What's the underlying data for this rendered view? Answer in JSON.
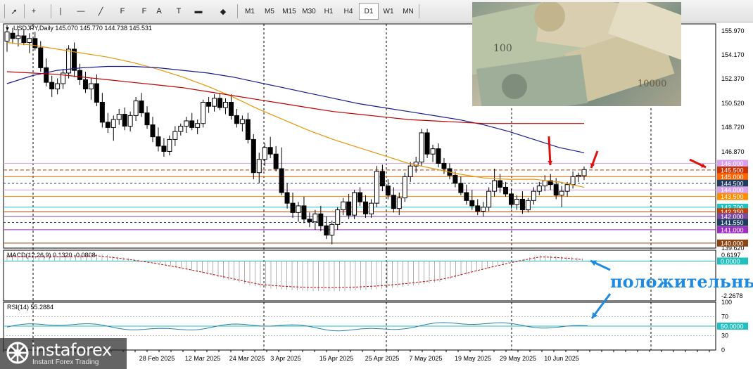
{
  "toolbar": {
    "tools": [
      {
        "name": "cursor-icon",
        "glyph": "➚"
      },
      {
        "name": "crosshair-icon",
        "glyph": "+"
      },
      {
        "name": "vertical-line-icon",
        "glyph": "|"
      },
      {
        "name": "horizontal-line-icon",
        "glyph": "—"
      },
      {
        "name": "trendline-icon",
        "glyph": "╱"
      },
      {
        "name": "fibonacci-icon",
        "glyph": "F"
      },
      {
        "name": "channel-icon",
        "glyph": "F"
      },
      {
        "name": "text-icon",
        "glyph": "A"
      },
      {
        "name": "text-label-icon",
        "glyph": "T"
      },
      {
        "name": "rectangle-icon",
        "glyph": "▬"
      },
      {
        "name": "shapes-icon",
        "glyph": "◆"
      }
    ],
    "timeframes": [
      "M1",
      "M5",
      "M15",
      "M30",
      "H1",
      "H4",
      "D1",
      "W1",
      "MN"
    ]
  },
  "main_panel": {
    "header": "USDJPY,Daily  145.070 145.770 144.738 145.531",
    "price_axis": [
      "155.970",
      "154.170",
      "152.370",
      "150.520",
      "148.720",
      "146.870",
      "139.620"
    ],
    "date_axis": [
      "28 Feb 2025",
      "12 Mar 2025",
      "24 Mar 2025",
      "3 Apr 2025",
      "15 Apr 2025",
      "25 Apr 2025",
      "7 May 2025",
      "19 May 2025",
      "29 May 2025",
      "10 Jun 2025"
    ],
    "level_labels": [
      {
        "text": "146.000",
        "bg": "#d8a0e8",
        "fg": "#ffffff"
      },
      {
        "text": "145.500",
        "bg": "#cc3300",
        "fg": "#ffffff"
      },
      {
        "text": "145.000",
        "bg": "#ff6600",
        "fg": "#ffffff"
      },
      {
        "text": "144.500",
        "bg": "#1f3b5f",
        "fg": "#ffffff"
      },
      {
        "text": "144.000",
        "bg": "#d8a0e8",
        "fg": "#ffffff"
      },
      {
        "text": "143.500",
        "bg": "#ff8c00",
        "fg": "#ffffff"
      },
      {
        "text": "142.700",
        "bg": "#20c0c0",
        "fg": "#ffffff"
      },
      {
        "text": "142.350",
        "bg": "#c04000",
        "fg": "#ffffff"
      },
      {
        "text": "142.000",
        "bg": "#7b4aa0",
        "fg": "#ffffff"
      },
      {
        "text": "141.550",
        "bg": "#1f3b5f",
        "fg": "#ffffff"
      },
      {
        "text": "141.000",
        "bg": "#9b30c0",
        "fg": "#ffffff"
      },
      {
        "text": "140.000",
        "bg": "#8b4513",
        "fg": "#ffffff"
      }
    ]
  },
  "macd_panel": {
    "header": "MACD(12,26,9) 0.1320 -0.0808",
    "axis": [
      "0.6197",
      "-2.2678"
    ],
    "zero_label": "0.0000",
    "annotation": "положительны"
  },
  "rsi_panel": {
    "header": "RSI(14) 55.2884",
    "axis": [
      "100",
      "70",
      "30",
      "0"
    ],
    "level_label": "50.0000"
  },
  "brand": {
    "name": "instaforex",
    "tagline": "Instant Forex Trading"
  },
  "colors": {
    "bull": "#ffffff",
    "bear": "#000000",
    "ma_fast": "#e8940c",
    "ma_mid": "#1a1a8c",
    "ma_slow": "#c00000",
    "macd_hist": "#b0b0b0",
    "macd_signal": "#c00000",
    "rsi": "#2a7fb0",
    "arrow_red": "#e01010",
    "arrow_blue": "#1e8be0",
    "annotation": "#1e8be0"
  },
  "chart_data": {
    "type": "candlestick",
    "symbol": "USDJPY",
    "timeframe": "Daily",
    "ylim": [
      139.62,
      156.5
    ],
    "candles": [
      {
        "o": 155.2,
        "h": 156.4,
        "l": 154.4,
        "c": 155.9
      },
      {
        "o": 155.8,
        "h": 156.2,
        "l": 155.0,
        "c": 155.4
      },
      {
        "o": 155.4,
        "h": 156.1,
        "l": 154.8,
        "c": 155.6
      },
      {
        "o": 155.6,
        "h": 156.1,
        "l": 154.9,
        "c": 155.1
      },
      {
        "o": 155.1,
        "h": 155.8,
        "l": 154.3,
        "c": 155.4
      },
      {
        "o": 155.4,
        "h": 155.9,
        "l": 154.5,
        "c": 154.7
      },
      {
        "o": 154.7,
        "h": 155.2,
        "l": 152.9,
        "c": 153.2
      },
      {
        "o": 153.2,
        "h": 153.9,
        "l": 151.8,
        "c": 152.1
      },
      {
        "o": 152.1,
        "h": 152.6,
        "l": 151.0,
        "c": 151.6
      },
      {
        "o": 151.6,
        "h": 152.4,
        "l": 151.2,
        "c": 152.0
      },
      {
        "o": 152.0,
        "h": 153.1,
        "l": 151.6,
        "c": 152.8
      },
      {
        "o": 152.8,
        "h": 154.9,
        "l": 152.4,
        "c": 154.6
      },
      {
        "o": 154.6,
        "h": 155.1,
        "l": 152.5,
        "c": 153.0
      },
      {
        "o": 153.0,
        "h": 153.5,
        "l": 151.9,
        "c": 152.3
      },
      {
        "o": 152.3,
        "h": 152.9,
        "l": 151.3,
        "c": 151.6
      },
      {
        "o": 151.6,
        "h": 152.4,
        "l": 150.8,
        "c": 152.0
      },
      {
        "o": 152.0,
        "h": 152.7,
        "l": 150.3,
        "c": 150.6
      },
      {
        "o": 150.6,
        "h": 151.3,
        "l": 148.7,
        "c": 149.1
      },
      {
        "o": 149.1,
        "h": 149.8,
        "l": 148.3,
        "c": 148.7
      },
      {
        "o": 148.7,
        "h": 149.6,
        "l": 147.7,
        "c": 149.3
      },
      {
        "o": 149.3,
        "h": 150.1,
        "l": 148.9,
        "c": 149.7
      },
      {
        "o": 149.7,
        "h": 150.2,
        "l": 148.5,
        "c": 148.8
      },
      {
        "o": 148.8,
        "h": 149.9,
        "l": 148.4,
        "c": 149.6
      },
      {
        "o": 149.6,
        "h": 151.0,
        "l": 149.2,
        "c": 150.7
      },
      {
        "o": 150.7,
        "h": 151.3,
        "l": 149.5,
        "c": 149.8
      },
      {
        "o": 149.8,
        "h": 150.3,
        "l": 148.6,
        "c": 148.9
      },
      {
        "o": 148.9,
        "h": 149.5,
        "l": 147.6,
        "c": 148.0
      },
      {
        "o": 148.0,
        "h": 148.7,
        "l": 146.9,
        "c": 147.3
      },
      {
        "o": 147.3,
        "h": 147.9,
        "l": 146.5,
        "c": 146.9
      },
      {
        "o": 146.9,
        "h": 148.1,
        "l": 146.6,
        "c": 147.8
      },
      {
        "o": 147.8,
        "h": 148.8,
        "l": 147.3,
        "c": 148.4
      },
      {
        "o": 148.4,
        "h": 149.0,
        "l": 148.1,
        "c": 148.8
      },
      {
        "o": 148.8,
        "h": 149.5,
        "l": 148.3,
        "c": 149.2
      },
      {
        "o": 149.2,
        "h": 149.8,
        "l": 148.5,
        "c": 148.7
      },
      {
        "o": 148.7,
        "h": 149.3,
        "l": 148.2,
        "c": 149.0
      },
      {
        "o": 149.0,
        "h": 150.8,
        "l": 148.7,
        "c": 150.6
      },
      {
        "o": 150.6,
        "h": 151.0,
        "l": 149.8,
        "c": 150.3
      },
      {
        "o": 150.3,
        "h": 151.2,
        "l": 149.9,
        "c": 150.9
      },
      {
        "o": 150.9,
        "h": 151.3,
        "l": 150.0,
        "c": 150.2
      },
      {
        "o": 150.2,
        "h": 150.9,
        "l": 149.7,
        "c": 150.6
      },
      {
        "o": 150.6,
        "h": 151.2,
        "l": 149.3,
        "c": 149.6
      },
      {
        "o": 149.6,
        "h": 150.1,
        "l": 148.7,
        "c": 149.0
      },
      {
        "o": 149.0,
        "h": 149.6,
        "l": 148.4,
        "c": 149.3
      },
      {
        "o": 149.3,
        "h": 149.8,
        "l": 147.5,
        "c": 147.8
      },
      {
        "o": 147.8,
        "h": 148.2,
        "l": 144.8,
        "c": 145.3
      },
      {
        "o": 145.3,
        "h": 146.8,
        "l": 144.5,
        "c": 146.3
      },
      {
        "o": 146.3,
        "h": 147.5,
        "l": 145.8,
        "c": 147.2
      },
      {
        "o": 147.2,
        "h": 148.0,
        "l": 146.4,
        "c": 146.7
      },
      {
        "o": 146.7,
        "h": 147.3,
        "l": 145.4,
        "c": 145.6
      },
      {
        "o": 145.6,
        "h": 147.2,
        "l": 143.6,
        "c": 143.8
      },
      {
        "o": 143.8,
        "h": 144.5,
        "l": 142.6,
        "c": 143.0
      },
      {
        "o": 143.0,
        "h": 143.8,
        "l": 141.9,
        "c": 142.3
      },
      {
        "o": 142.3,
        "h": 143.1,
        "l": 141.6,
        "c": 142.8
      },
      {
        "o": 142.8,
        "h": 143.5,
        "l": 141.5,
        "c": 141.8
      },
      {
        "o": 141.8,
        "h": 142.3,
        "l": 141.2,
        "c": 141.6
      },
      {
        "o": 141.6,
        "h": 142.5,
        "l": 141.0,
        "c": 142.2
      },
      {
        "o": 142.2,
        "h": 142.8,
        "l": 140.9,
        "c": 141.3
      },
      {
        "o": 141.3,
        "h": 142.0,
        "l": 140.3,
        "c": 140.6
      },
      {
        "o": 140.6,
        "h": 141.7,
        "l": 139.9,
        "c": 141.4
      },
      {
        "o": 141.4,
        "h": 142.7,
        "l": 141.0,
        "c": 142.5
      },
      {
        "o": 142.5,
        "h": 143.4,
        "l": 142.1,
        "c": 143.1
      },
      {
        "o": 143.1,
        "h": 143.7,
        "l": 141.8,
        "c": 142.1
      },
      {
        "o": 142.1,
        "h": 144.0,
        "l": 141.8,
        "c": 143.8
      },
      {
        "o": 143.8,
        "h": 144.2,
        "l": 142.8,
        "c": 143.1
      },
      {
        "o": 143.1,
        "h": 143.6,
        "l": 141.9,
        "c": 142.2
      },
      {
        "o": 142.2,
        "h": 143.3,
        "l": 141.9,
        "c": 143.0
      },
      {
        "o": 143.0,
        "h": 145.8,
        "l": 142.7,
        "c": 145.4
      },
      {
        "o": 145.4,
        "h": 145.9,
        "l": 143.9,
        "c": 144.3
      },
      {
        "o": 144.3,
        "h": 144.8,
        "l": 143.3,
        "c": 143.6
      },
      {
        "o": 143.6,
        "h": 144.2,
        "l": 142.3,
        "c": 142.6
      },
      {
        "o": 142.6,
        "h": 143.8,
        "l": 142.1,
        "c": 143.4
      },
      {
        "o": 143.4,
        "h": 145.3,
        "l": 143.1,
        "c": 145.0
      },
      {
        "o": 145.0,
        "h": 146.1,
        "l": 144.6,
        "c": 145.8
      },
      {
        "o": 145.8,
        "h": 146.5,
        "l": 145.3,
        "c": 146.1
      },
      {
        "o": 146.1,
        "h": 148.6,
        "l": 145.8,
        "c": 148.3
      },
      {
        "o": 148.3,
        "h": 148.6,
        "l": 146.4,
        "c": 146.7
      },
      {
        "o": 146.7,
        "h": 147.4,
        "l": 146.1,
        "c": 147.1
      },
      {
        "o": 147.1,
        "h": 147.5,
        "l": 145.7,
        "c": 146.0
      },
      {
        "o": 146.0,
        "h": 146.4,
        "l": 145.2,
        "c": 145.6
      },
      {
        "o": 145.6,
        "h": 146.0,
        "l": 144.8,
        "c": 145.1
      },
      {
        "o": 145.1,
        "h": 145.4,
        "l": 144.2,
        "c": 144.5
      },
      {
        "o": 144.5,
        "h": 145.0,
        "l": 143.6,
        "c": 143.8
      },
      {
        "o": 143.8,
        "h": 144.4,
        "l": 142.9,
        "c": 143.2
      },
      {
        "o": 143.2,
        "h": 144.0,
        "l": 142.5,
        "c": 142.8
      },
      {
        "o": 142.8,
        "h": 143.3,
        "l": 142.1,
        "c": 142.4
      },
      {
        "o": 142.4,
        "h": 143.1,
        "l": 142.0,
        "c": 142.7
      },
      {
        "o": 142.7,
        "h": 144.2,
        "l": 142.4,
        "c": 143.9
      },
      {
        "o": 143.9,
        "h": 145.6,
        "l": 143.5,
        "c": 144.7
      },
      {
        "o": 144.7,
        "h": 145.2,
        "l": 143.8,
        "c": 144.2
      },
      {
        "o": 144.2,
        "h": 144.6,
        "l": 143.5,
        "c": 143.7
      },
      {
        "o": 143.7,
        "h": 144.1,
        "l": 142.6,
        "c": 142.9
      },
      {
        "o": 142.9,
        "h": 143.6,
        "l": 142.5,
        "c": 143.3
      },
      {
        "o": 143.3,
        "h": 143.9,
        "l": 142.2,
        "c": 142.5
      },
      {
        "o": 142.5,
        "h": 143.4,
        "l": 142.3,
        "c": 143.2
      },
      {
        "o": 143.2,
        "h": 144.2,
        "l": 142.9,
        "c": 143.9
      },
      {
        "o": 143.9,
        "h": 144.6,
        "l": 143.6,
        "c": 144.3
      },
      {
        "o": 144.3,
        "h": 145.1,
        "l": 143.9,
        "c": 144.7
      },
      {
        "o": 144.7,
        "h": 145.2,
        "l": 144.0,
        "c": 144.4
      },
      {
        "o": 144.4,
        "h": 144.9,
        "l": 143.3,
        "c": 143.6
      },
      {
        "o": 143.6,
        "h": 144.3,
        "l": 142.7,
        "c": 143.9
      },
      {
        "o": 143.9,
        "h": 144.6,
        "l": 143.5,
        "c": 144.4
      },
      {
        "o": 144.4,
        "h": 145.4,
        "l": 144.1,
        "c": 145.0
      },
      {
        "o": 145.0,
        "h": 145.3,
        "l": 144.6,
        "c": 145.1
      },
      {
        "o": 145.07,
        "h": 145.77,
        "l": 144.738,
        "c": 145.531
      }
    ],
    "moving_averages": [
      {
        "color_key": "ma_fast",
        "values": [
          155.1,
          154.9,
          154.6,
          154.3,
          154.0,
          153.6,
          153.1,
          152.5,
          151.8,
          151.0,
          150.1,
          149.3,
          148.5,
          147.8,
          147.2,
          146.6,
          146.0,
          145.6,
          145.2,
          144.9,
          144.8,
          144.8,
          144.6,
          144.2
        ]
      },
      {
        "color_key": "ma_mid",
        "values": [
          152.0,
          152.6,
          153.0,
          153.2,
          153.3,
          153.3,
          153.2,
          153.0,
          152.8,
          152.5,
          152.1,
          151.7,
          151.3,
          150.9,
          150.5,
          150.2,
          149.9,
          149.6,
          149.3,
          148.9,
          148.4,
          147.8,
          147.2,
          146.8
        ]
      },
      {
        "color_key": "ma_slow",
        "values": [
          152.9,
          152.8,
          152.7,
          152.5,
          152.3,
          152.1,
          151.9,
          151.7,
          151.4,
          151.1,
          150.8,
          150.5,
          150.2,
          149.9,
          149.7,
          149.5,
          149.3,
          149.2,
          149.1,
          149.0,
          149.0,
          149.0,
          149.0,
          149.0
        ]
      }
    ],
    "macd": {
      "range": [
        -2.2678,
        0.6197
      ],
      "last_main": 0.132,
      "last_signal": -0.0808
    },
    "rsi": {
      "range": [
        0,
        100
      ],
      "last": 55.2884,
      "level": 50
    }
  }
}
